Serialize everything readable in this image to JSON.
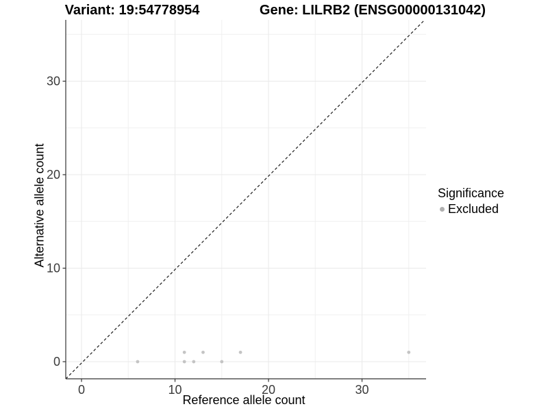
{
  "header": {
    "title_left": "Variant: 19:54778954",
    "title_right": "Gene: LILRB2 (ENSG00000131042)"
  },
  "chart_data": {
    "type": "scatter",
    "titles": [
      "Variant: 19:54778954",
      "Gene: LILRB2 (ENSG00000131042)"
    ],
    "xlabel": "Reference allele count",
    "ylabel": "Alternative allele count",
    "xlim": [
      -1.8,
      36.6
    ],
    "ylim": [
      -1.8,
      36.4
    ],
    "x_ticks": [
      0,
      10,
      20,
      30
    ],
    "y_ticks": [
      0,
      10,
      20,
      30
    ],
    "x_minor_gridlines": [
      5,
      15,
      25,
      35
    ],
    "y_minor_gridlines": [
      5,
      15,
      25,
      35
    ],
    "grid": "major-and-minor",
    "reference_line": {
      "type": "identity y=x",
      "slope": 1,
      "intercept": 0,
      "style": "dashed",
      "color": "#1a1a1a"
    },
    "series": [
      {
        "name": "Excluded",
        "color": "#c4c4c4",
        "points": [
          [
            6,
            0
          ],
          [
            11,
            0
          ],
          [
            11,
            1
          ],
          [
            12,
            0
          ],
          [
            13,
            1
          ],
          [
            15,
            0
          ],
          [
            17,
            1
          ],
          [
            35,
            1
          ]
        ]
      }
    ],
    "legend": {
      "title": "Significance",
      "position": "right",
      "items": [
        {
          "label": "Excluded",
          "color": "#b0b0b0"
        }
      ]
    }
  },
  "style_colors": {
    "grid_major": "#e9e9e9",
    "grid_minor": "#f0f0f0",
    "axis_line": "#333333",
    "tick_label": "#3a3a3a",
    "point_fill": "#c4c4c4"
  }
}
